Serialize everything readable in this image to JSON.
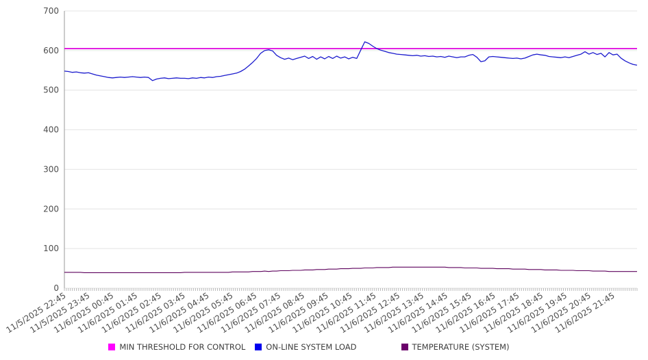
{
  "chart_data": {
    "type": "line",
    "title": "",
    "xlabel": "",
    "ylabel": "",
    "ylim": [
      0,
      700
    ],
    "y_ticks": [
      0,
      100,
      200,
      300,
      400,
      500,
      600,
      700
    ],
    "grid": "horizontal",
    "legend_position": "bottom-center",
    "x_minor_tick_count": 288,
    "x_tick_labels": [
      "11/5/2025 22:45",
      "11/5/2025 23:45",
      "11/6/2025 00:45",
      "11/6/2025 01:45",
      "11/6/2025 02:45",
      "11/6/2025 03:45",
      "11/6/2025 04:45",
      "11/6/2025 05:45",
      "11/6/2025 06:45",
      "11/6/2025 07:45",
      "11/6/2025 08:45",
      "11/6/2025 09:45",
      "11/6/2025 10:45",
      "11/6/2025 11:45",
      "11/6/2025 12:45",
      "11/6/2025 13:45",
      "11/6/2025 14:45",
      "11/6/2025 15:45",
      "11/6/2025 16:45",
      "11/6/2025 17:45",
      "11/6/2025 18:45",
      "11/6/2025 19:45",
      "11/6/2025 20:45",
      "11/6/2025 21:45"
    ],
    "series": [
      {
        "name": "MIN THRESHOLD FOR CONTROL",
        "kind": "threshold",
        "color": "#dd00dd",
        "swatch": "#ff00ff",
        "value": 605
      },
      {
        "name": "ON-LINE SYSTEM LOAD",
        "kind": "line",
        "color": "#1a1acd",
        "swatch": "#0000ee",
        "values": [
          548,
          547,
          545,
          546,
          544,
          543,
          544,
          541,
          538,
          536,
          534,
          532,
          531,
          532,
          533,
          532,
          533,
          534,
          533,
          532,
          533,
          532,
          524,
          528,
          530,
          531,
          529,
          530,
          531,
          530,
          530,
          529,
          531,
          530,
          532,
          531,
          533,
          532,
          534,
          535,
          537,
          539,
          541,
          543,
          547,
          553,
          561,
          570,
          580,
          593,
          600,
          602,
          599,
          588,
          582,
          578,
          581,
          577,
          580,
          583,
          586,
          580,
          585,
          578,
          584,
          579,
          585,
          580,
          586,
          581,
          584,
          579,
          583,
          580,
          601,
          622,
          618,
          611,
          605,
          601,
          598,
          595,
          593,
          591,
          590,
          589,
          588,
          587,
          588,
          586,
          587,
          585,
          586,
          584,
          585,
          583,
          586,
          584,
          582,
          584,
          584,
          588,
          590,
          583,
          572,
          574,
          584,
          585,
          584,
          583,
          582,
          581,
          580,
          581,
          579,
          581,
          585,
          589,
          591,
          589,
          588,
          585,
          584,
          583,
          582,
          584,
          582,
          585,
          588,
          591,
          597,
          591,
          595,
          590,
          593,
          584,
          595,
          589,
          591,
          581,
          574,
          569,
          565,
          563
        ]
      },
      {
        "name": "TEMPERATURE (SYSTEM)",
        "kind": "line",
        "color": "#5c005c",
        "swatch": "#6a006a",
        "values": [
          40,
          40,
          40,
          40,
          40,
          39,
          39,
          39,
          39,
          39,
          39,
          39,
          39,
          39,
          39,
          39,
          39,
          39,
          39,
          39,
          39,
          39,
          39,
          39,
          39,
          39,
          39,
          39,
          39,
          39,
          40,
          40,
          40,
          40,
          40,
          40,
          40,
          40,
          40,
          40,
          40,
          40,
          41,
          41,
          41,
          41,
          41,
          42,
          42,
          42,
          43,
          42,
          43,
          43,
          44,
          44,
          44,
          45,
          45,
          45,
          46,
          46,
          46,
          47,
          47,
          47,
          48,
          48,
          48,
          49,
          49,
          49,
          50,
          50,
          50,
          51,
          51,
          51,
          52,
          52,
          52,
          52,
          53,
          53,
          53,
          53,
          53,
          53,
          53,
          53,
          53,
          53,
          53,
          53,
          53,
          53,
          52,
          52,
          52,
          52,
          51,
          51,
          51,
          51,
          50,
          50,
          50,
          50,
          49,
          49,
          49,
          49,
          48,
          48,
          48,
          48,
          47,
          47,
          47,
          47,
          46,
          46,
          46,
          46,
          45,
          45,
          45,
          45,
          44,
          44,
          44,
          44,
          43,
          43,
          43,
          43,
          42,
          42,
          42,
          42,
          42,
          42,
          42,
          42
        ]
      }
    ]
  },
  "legend": {
    "items": [
      {
        "label": "MIN THRESHOLD FOR CONTROL"
      },
      {
        "label": "ON-LINE SYSTEM LOAD"
      },
      {
        "label": "TEMPERATURE (SYSTEM)"
      }
    ]
  }
}
